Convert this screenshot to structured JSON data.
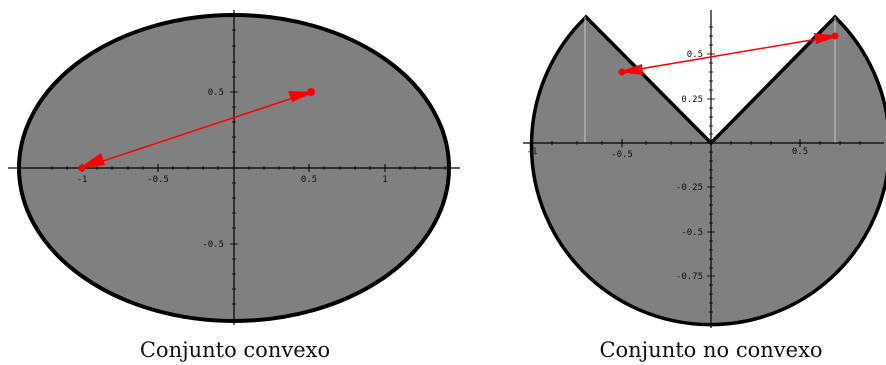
{
  "figures": [
    {
      "id": "convex",
      "caption": "Conjunto convexo",
      "x_ticks": [
        "-1",
        "-0.5",
        "0.5",
        "1"
      ],
      "y_ticks": [
        "0.5",
        "-0.5"
      ],
      "set": {
        "shape": "ellipse",
        "fill": "#808080",
        "stroke": "#000000"
      },
      "segment": {
        "from": [
          -1,
          0
        ],
        "to": [
          0.5,
          0.5
        ],
        "color": "#ff0000"
      }
    },
    {
      "id": "nonconvex",
      "caption": "Conjunto no convexo",
      "x_ticks": [
        "-1",
        "-0.5",
        "0.5"
      ],
      "y_ticks": [
        "0.5",
        "0.25",
        "-0.25",
        "-0.5",
        "-0.75"
      ],
      "set": {
        "shape": "disk-with-wedge-removed",
        "fill": "#808080",
        "stroke": "#000000"
      },
      "segment": {
        "from": [
          -0.5,
          0.4
        ],
        "to": [
          0.65,
          0.6
        ],
        "color": "#ff0000"
      }
    }
  ]
}
